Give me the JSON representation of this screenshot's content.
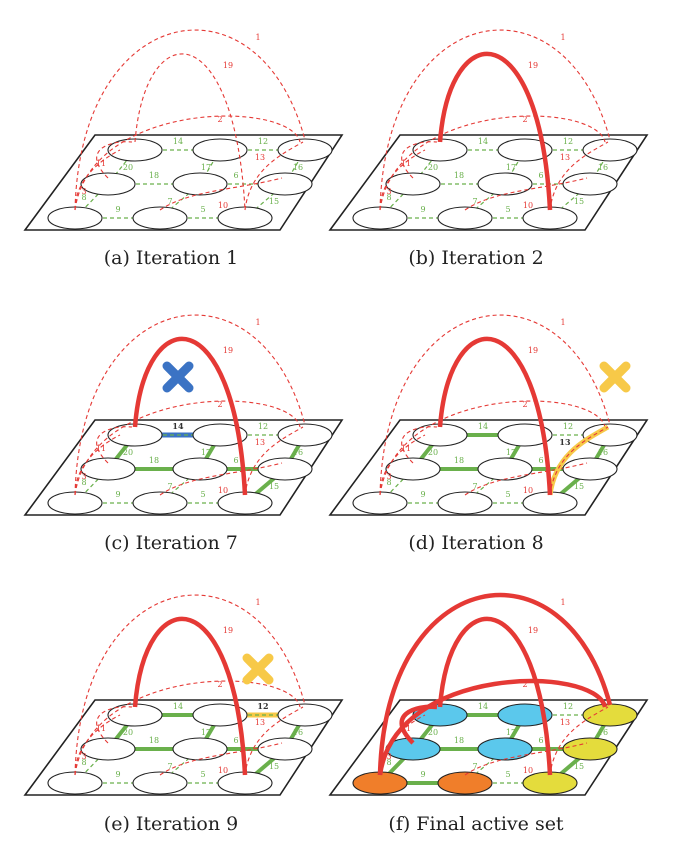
{
  "panels": [
    {
      "id": "a",
      "caption": "(a) Iteration 1",
      "bold_red": [],
      "bold_green": [],
      "mark": null,
      "highlight": null,
      "node_fills": null
    },
    {
      "id": "b",
      "caption": "(b) Iteration 2",
      "bold_red": [
        "19"
      ],
      "bold_green": [],
      "mark": null,
      "highlight": null,
      "node_fills": null
    },
    {
      "id": "c",
      "caption": "(c) Iteration 7",
      "bold_red": [
        "19"
      ],
      "bold_green": [
        "20",
        "18",
        "17",
        "6",
        "15",
        "16"
      ],
      "mark": {
        "color": "#3b73c4",
        "pos": "center"
      },
      "highlight": {
        "edge": "14",
        "color": "#3b73c4"
      },
      "node_fills": null
    },
    {
      "id": "d",
      "caption": "(d) Iteration 8",
      "bold_red": [
        "19"
      ],
      "bold_green": [
        "20",
        "18",
        "17",
        "6",
        "15",
        "16",
        "14"
      ],
      "mark": {
        "color": "#f7c948",
        "pos": "right"
      },
      "highlight": {
        "edge": "13",
        "color": "#f7c948"
      },
      "node_fills": null
    },
    {
      "id": "e",
      "caption": "(e) Iteration 9",
      "bold_red": [
        "19"
      ],
      "bold_green": [
        "20",
        "18",
        "17",
        "6",
        "15",
        "16",
        "14",
        "13"
      ],
      "mark": {
        "color": "#f7c948",
        "pos": "mid-right"
      },
      "highlight": {
        "edge": "12",
        "color": "#f7c948"
      },
      "node_fills": null
    },
    {
      "id": "f",
      "caption": "(f) Final active set",
      "bold_red": [
        "1",
        "19",
        "2",
        "11"
      ],
      "bold_green": [
        "20",
        "18",
        "17",
        "6",
        "15",
        "16",
        "14",
        "9",
        "8"
      ],
      "mark": null,
      "highlight": null,
      "node_fills": [
        "#5bc8ec",
        "#5bc8ec",
        "#e4dc3c",
        "#5bc8ec",
        "#5bc8ec",
        "#e4dc3c",
        "#f07e2a",
        "#f07e2a",
        "#e4dc3c"
      ]
    }
  ],
  "edge_labels": {
    "green": [
      "14",
      "12",
      "20",
      "17",
      "16",
      "18",
      "6",
      "7",
      "15",
      "9",
      "5",
      "8"
    ],
    "red": [
      "1",
      "19",
      "2",
      "11",
      "13",
      "10",
      "3"
    ]
  },
  "colors": {
    "red": "#e53935",
    "green": "#6ab04c",
    "plane": "#222222"
  }
}
